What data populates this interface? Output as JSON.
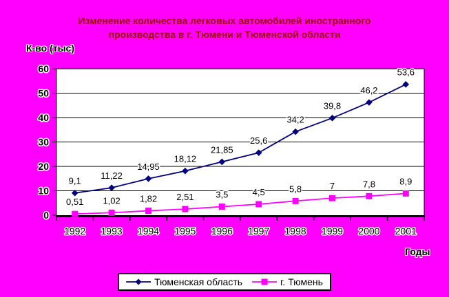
{
  "chart_data": {
    "type": "line",
    "title_lines": [
      "Изменение количества легковых автомобилей иностранного",
      "производства в г. Тюмени и Тюменской области"
    ],
    "ylabel": "К-во (тыс)",
    "xlabel": "Годы",
    "categories": [
      "1992",
      "1993",
      "1994",
      "1995",
      "1996",
      "1997",
      "1998",
      "1999",
      "2000",
      "2001"
    ],
    "y_ticks": [
      0,
      10,
      20,
      30,
      40,
      50,
      60
    ],
    "ylim": [
      0,
      60
    ],
    "grid": "horizontal",
    "legend_position": "bottom",
    "series": [
      {
        "name": "Тюменская область",
        "color": "#000080",
        "marker": "diamond",
        "values": [
          9.1,
          11.22,
          14.95,
          18.12,
          21.85,
          25.6,
          34.2,
          39.8,
          46.2,
          53.6
        ],
        "labels": [
          "9,1",
          "11,22",
          "14,95",
          "18,12",
          "21,85",
          "25,6",
          "34,2",
          "39,8",
          "46,2",
          "53,6"
        ]
      },
      {
        "name": "г. Тюмень",
        "color": "#ff00ff",
        "marker": "square",
        "values": [
          0.51,
          1.02,
          1.82,
          2.51,
          3.5,
          4.5,
          5.8,
          7,
          7.8,
          8.9
        ],
        "labels": [
          "0,51",
          "1,02",
          "1,82",
          "2,51",
          "3,5",
          "4,5",
          "5,8",
          "7",
          "7,8",
          "8,9"
        ]
      }
    ]
  },
  "colors": {
    "background": "#ff00ff",
    "plot_background": "#ffffff",
    "title_text": "#990000",
    "axis_text": "#000000",
    "gridline": "#000000"
  }
}
